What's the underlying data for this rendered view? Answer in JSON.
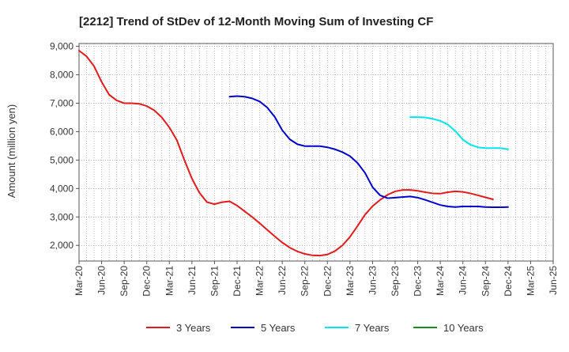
{
  "chart_data": {
    "type": "line",
    "title": "[2212]  Trend of StDev of 12-Month Moving Sum of Investing CF",
    "ylabel": "Amount (million yen)",
    "xlabel": "",
    "ylim": [
      1450,
      9100
    ],
    "y_ticks": [
      2000,
      3000,
      4000,
      5000,
      6000,
      7000,
      8000,
      9000
    ],
    "y_tick_labels": [
      "2,000",
      "3,000",
      "4,000",
      "5,000",
      "6,000",
      "7,000",
      "8,000",
      "9,000"
    ],
    "x_ticks": [
      "Mar-20",
      "Jun-20",
      "Sep-20",
      "Dec-20",
      "Mar-21",
      "Jun-21",
      "Sep-21",
      "Dec-21",
      "Mar-22",
      "Jun-22",
      "Sep-22",
      "Dec-22",
      "Mar-23",
      "Jun-23",
      "Sep-23",
      "Dec-23",
      "Mar-24",
      "Jun-24",
      "Sep-24",
      "Dec-24",
      "Mar-25",
      "Jun-25"
    ],
    "grid": true,
    "legend_position": "bottom",
    "series": [
      {
        "name": "3 Years",
        "color": "#e31a1c",
        "x_start": "Mar-20",
        "values": [
          8850,
          8650,
          8300,
          7750,
          7300,
          7100,
          7000,
          7000,
          6980,
          6900,
          6750,
          6500,
          6150,
          5700,
          5000,
          4350,
          3850,
          3520,
          3450,
          3520,
          3550,
          3400,
          3200,
          3000,
          2780,
          2550,
          2320,
          2100,
          1920,
          1790,
          1700,
          1650,
          1640,
          1680,
          1800,
          2000,
          2300,
          2680,
          3080,
          3380,
          3600,
          3780,
          3900,
          3950,
          3950,
          3920,
          3870,
          3830,
          3820,
          3870,
          3900,
          3880,
          3830,
          3760,
          3690,
          3620
        ]
      },
      {
        "name": "5 Years",
        "color": "#0000cc",
        "x_start": "Nov-21",
        "values": [
          7230,
          7250,
          7230,
          7170,
          7060,
          6850,
          6520,
          6050,
          5730,
          5560,
          5490,
          5490,
          5490,
          5450,
          5380,
          5280,
          5140,
          4900,
          4550,
          4050,
          3760,
          3660,
          3680,
          3700,
          3720,
          3680,
          3600,
          3510,
          3420,
          3370,
          3350,
          3370,
          3370,
          3370,
          3350,
          3340,
          3340,
          3350
        ]
      },
      {
        "name": "7 Years",
        "color": "#00e5ee",
        "x_start": "Nov-23",
        "values": [
          6510,
          6510,
          6500,
          6450,
          6380,
          6250,
          6020,
          5720,
          5540,
          5450,
          5420,
          5420,
          5420,
          5380
        ]
      },
      {
        "name": "10 Years",
        "color": "#1a8c1a",
        "x_start": "Nov-23",
        "values": []
      }
    ]
  }
}
